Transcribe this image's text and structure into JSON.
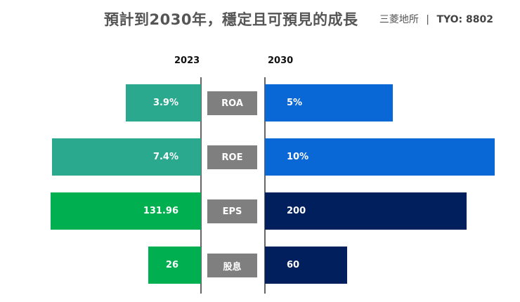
{
  "title": "預計到2030年，穩定且可預見的成長",
  "brand": {
    "name": "三菱地所",
    "separator": "|",
    "ticker": "TYO: 8802"
  },
  "chart_data": {
    "type": "bar",
    "orientation": "horizontal-diverging",
    "categories": [
      "ROA",
      "ROE",
      "EPS",
      "股息"
    ],
    "series": [
      {
        "name": "2023",
        "values": [
          3.9,
          7.4,
          131.96,
          26
        ],
        "labels": [
          "3.9%",
          "7.4%",
          "131.96",
          "26"
        ],
        "colors": [
          "#2aa98f",
          "#2aa98f",
          "#00b050",
          "#00b050"
        ]
      },
      {
        "name": "2030",
        "values": [
          5,
          10,
          200,
          60
        ],
        "labels": [
          "5%",
          "10%",
          "200",
          "60"
        ],
        "colors": [
          "#0a67d6",
          "#0a67d6",
          "#001f5c",
          "#001f5c"
        ]
      }
    ],
    "grid": false,
    "label_color": "#7f7f7f"
  }
}
